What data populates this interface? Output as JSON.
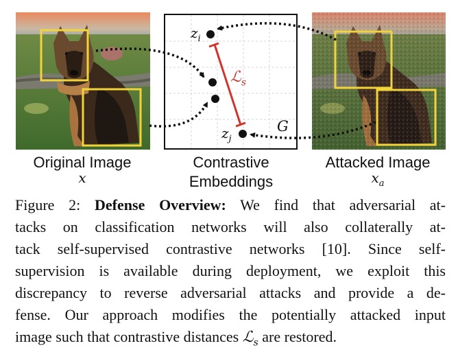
{
  "figure": {
    "original_label": "Original Image",
    "original_var": "x",
    "embeddings_label_1": "Contrastive",
    "embeddings_label_2": "Embeddings",
    "attacked_label": "Attacked Image",
    "attacked_var_base": "x",
    "attacked_var_sub": "a",
    "point_i_base": "z",
    "point_i_sub": "i",
    "point_j_base": "z",
    "point_j_sub": "j",
    "loss_base": "ℒ",
    "loss_sub": "s",
    "generator_label": "G"
  },
  "colors": {
    "highlight_box": "#f2d43a",
    "loss_line": "#d0352b",
    "arrow": "#111111"
  },
  "caption": {
    "lines": [
      {
        "parts": [
          {
            "t": "Figure 2: "
          },
          {
            "t": "Defense Overview:",
            "b": true
          },
          {
            "t": " We find that adversarial at-"
          }
        ]
      },
      {
        "parts": [
          {
            "t": "tacks on classification networks will also collaterally at-"
          }
        ]
      },
      {
        "parts": [
          {
            "t": "tack self-supervised contrastive networks [10].  Since self-"
          }
        ]
      },
      {
        "parts": [
          {
            "t": "supervision is available during deployment, we exploit this"
          }
        ]
      },
      {
        "parts": [
          {
            "t": "discrepancy to reverse adversarial attacks and provide a de-"
          }
        ]
      },
      {
        "parts": [
          {
            "t": "fense. Our approach modifies the potentially attacked input"
          }
        ]
      },
      {
        "parts": [
          {
            "t": "image such that contrastive distances "
          },
          {
            "t": "ℒ",
            "m": true
          },
          {
            "t": "s",
            "m": true,
            "sub": true
          },
          {
            "t": " are restored."
          }
        ]
      }
    ]
  }
}
